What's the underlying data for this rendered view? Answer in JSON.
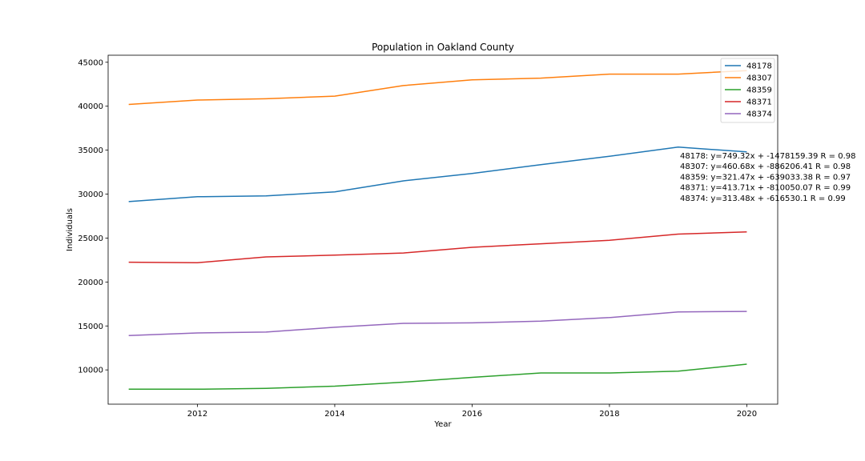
{
  "chart_data": {
    "type": "line",
    "title": "Population in Oakland County",
    "xlabel": "Year",
    "ylabel": "Individuals",
    "xlim": [
      2010.7,
      2020.45
    ],
    "ylim": [
      6100,
      45800
    ],
    "x_ticks": [
      2012,
      2014,
      2016,
      2018,
      2020
    ],
    "y_ticks": [
      10000,
      15000,
      20000,
      25000,
      30000,
      35000,
      40000,
      45000
    ],
    "x": [
      2011,
      2012,
      2013,
      2014,
      2015,
      2016,
      2017,
      2018,
      2019,
      2020
    ],
    "grid": false,
    "legend_position": "top-right",
    "series": [
      {
        "name": "48178",
        "color": "#1f77b4",
        "values": [
          29150,
          29700,
          29800,
          30250,
          31500,
          32350,
          33350,
          34300,
          35350,
          34800
        ]
      },
      {
        "name": "48307",
        "color": "#ff7f0e",
        "values": [
          40200,
          40700,
          40850,
          41150,
          42350,
          43000,
          43200,
          43650,
          43650,
          44050
        ]
      },
      {
        "name": "48359",
        "color": "#2ca02c",
        "values": [
          7800,
          7800,
          7900,
          8150,
          8600,
          9150,
          9650,
          9650,
          9850,
          10650
        ]
      },
      {
        "name": "48371",
        "color": "#d62728",
        "values": [
          22250,
          22200,
          22850,
          23050,
          23300,
          23950,
          24350,
          24750,
          25450,
          25700
        ]
      },
      {
        "name": "48374",
        "color": "#9467bd",
        "values": [
          13900,
          14200,
          14300,
          14850,
          15300,
          15350,
          15550,
          15950,
          16600,
          16650
        ]
      }
    ],
    "annotations": [
      "48178: y=749.32x + -1478159.39 R = 0.98",
      "48307: y=460.68x + -886206.41 R = 0.98",
      "48359: y=321.47x + -639033.38 R = 0.97",
      "48371: y=413.71x + -810050.07 R = 0.99",
      "48374: y=313.48x + -616530.1 R = 0.99"
    ]
  }
}
